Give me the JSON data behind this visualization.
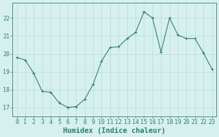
{
  "x": [
    0,
    1,
    2,
    3,
    4,
    5,
    6,
    7,
    8,
    9,
    10,
    11,
    12,
    13,
    14,
    15,
    16,
    17,
    18,
    19,
    20,
    21,
    22,
    23
  ],
  "y": [
    19.8,
    19.65,
    18.9,
    17.9,
    17.85,
    17.25,
    17.0,
    17.05,
    17.45,
    18.3,
    19.6,
    20.35,
    20.4,
    20.85,
    21.2,
    22.35,
    22.0,
    20.1,
    22.0,
    21.05,
    20.85,
    20.85,
    20.05,
    19.15
  ],
  "line_color": "#2e7d6e",
  "marker": "+",
  "marker_size": 3,
  "bg_color": "#d6f0ef",
  "grid_color": "#b8d8d5",
  "xlabel": "Humidex (Indice chaleur)",
  "ylabel_ticks": [
    17,
    18,
    19,
    20,
    21,
    22
  ],
  "xlim": [
    -0.5,
    23.5
  ],
  "ylim": [
    16.5,
    22.85
  ],
  "xtick_labels": [
    "0",
    "1",
    "2",
    "3",
    "4",
    "5",
    "6",
    "7",
    "8",
    "9",
    "10",
    "11",
    "12",
    "13",
    "14",
    "15",
    "16",
    "17",
    "18",
    "19",
    "20",
    "21",
    "22",
    "23"
  ],
  "font_color": "#2e7d6e",
  "label_fontsize": 6.5,
  "tick_fontsize": 6.0,
  "xlabel_fontsize": 7.5
}
